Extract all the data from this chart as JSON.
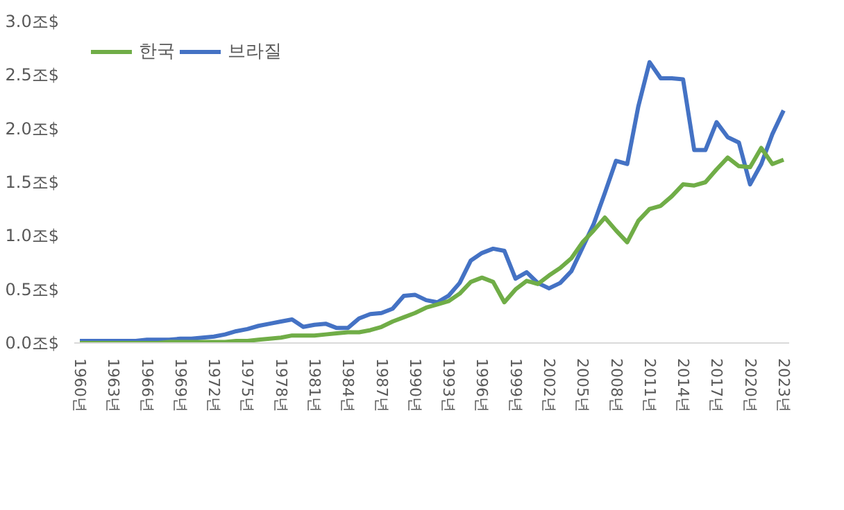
{
  "chart_data": {
    "type": "line",
    "x": [
      1960,
      1961,
      1962,
      1963,
      1964,
      1965,
      1966,
      1967,
      1968,
      1969,
      1970,
      1971,
      1972,
      1973,
      1974,
      1975,
      1976,
      1977,
      1978,
      1979,
      1980,
      1981,
      1982,
      1983,
      1984,
      1985,
      1986,
      1987,
      1988,
      1989,
      1990,
      1991,
      1992,
      1993,
      1994,
      1995,
      1996,
      1997,
      1998,
      1999,
      2000,
      2001,
      2002,
      2003,
      2004,
      2005,
      2006,
      2007,
      2008,
      2009,
      2010,
      2011,
      2012,
      2013,
      2014,
      2015,
      2016,
      2017,
      2018,
      2019,
      2020,
      2021,
      2022,
      2023
    ],
    "series": [
      {
        "name": "한국",
        "color": "#70ad47",
        "values": [
          0.0,
          0.0,
          0.0,
          0.0,
          0.0,
          0.0,
          0.0,
          0.0,
          0.01,
          0.01,
          0.01,
          0.01,
          0.01,
          0.01,
          0.02,
          0.02,
          0.03,
          0.04,
          0.05,
          0.07,
          0.07,
          0.07,
          0.08,
          0.09,
          0.1,
          0.1,
          0.12,
          0.15,
          0.2,
          0.24,
          0.28,
          0.33,
          0.36,
          0.39,
          0.46,
          0.57,
          0.61,
          0.57,
          0.38,
          0.5,
          0.58,
          0.55,
          0.63,
          0.7,
          0.79,
          0.94,
          1.05,
          1.17,
          1.05,
          0.94,
          1.14,
          1.25,
          1.28,
          1.37,
          1.48,
          1.47,
          1.5,
          1.62,
          1.73,
          1.65,
          1.64,
          1.82,
          1.67,
          1.71
        ]
      },
      {
        "name": "브라질",
        "color": "#4472c4",
        "values": [
          0.02,
          0.02,
          0.02,
          0.02,
          0.02,
          0.02,
          0.03,
          0.03,
          0.03,
          0.04,
          0.04,
          0.05,
          0.06,
          0.08,
          0.11,
          0.13,
          0.16,
          0.18,
          0.2,
          0.22,
          0.15,
          0.17,
          0.18,
          0.14,
          0.14,
          0.23,
          0.27,
          0.28,
          0.32,
          0.44,
          0.45,
          0.4,
          0.38,
          0.44,
          0.56,
          0.77,
          0.84,
          0.88,
          0.86,
          0.6,
          0.66,
          0.56,
          0.51,
          0.56,
          0.67,
          0.89,
          1.11,
          1.4,
          1.7,
          1.67,
          2.21,
          2.62,
          2.47,
          2.47,
          2.46,
          1.8,
          1.8,
          2.06,
          1.92,
          1.87,
          1.48,
          1.67,
          1.95,
          2.17
        ]
      }
    ],
    "xlim": [
      1959.5,
      2023.5
    ],
    "xticks": [
      {
        "value": 1960,
        "label": "1960년"
      },
      {
        "value": 1963,
        "label": "1963년"
      },
      {
        "value": 1966,
        "label": "1966년"
      },
      {
        "value": 1969,
        "label": "1969년"
      },
      {
        "value": 1972,
        "label": "1972년"
      },
      {
        "value": 1975,
        "label": "1975년"
      },
      {
        "value": 1978,
        "label": "1978년"
      },
      {
        "value": 1981,
        "label": "1981년"
      },
      {
        "value": 1984,
        "label": "1984년"
      },
      {
        "value": 1987,
        "label": "1987년"
      },
      {
        "value": 1990,
        "label": "1990년"
      },
      {
        "value": 1993,
        "label": "1993년"
      },
      {
        "value": 1996,
        "label": "1996년"
      },
      {
        "value": 1999,
        "label": "1999년"
      },
      {
        "value": 2002,
        "label": "2002년"
      },
      {
        "value": 2005,
        "label": "2005년"
      },
      {
        "value": 2008,
        "label": "2008년"
      },
      {
        "value": 2011,
        "label": "2011년"
      },
      {
        "value": 2014,
        "label": "2014년"
      },
      {
        "value": 2017,
        "label": "2017년"
      },
      {
        "value": 2020,
        "label": "2020년"
      },
      {
        "value": 2023,
        "label": "2023년"
      }
    ],
    "ylim": [
      0,
      3.0
    ],
    "yticks": [
      {
        "value": 0,
        "label": "0.0조$"
      },
      {
        "value": 0.5,
        "label": "0.5조$"
      },
      {
        "value": 1.0,
        "label": "1.0조$"
      },
      {
        "value": 1.5,
        "label": "1.5조$"
      },
      {
        "value": 2.0,
        "label": "2.0조$"
      },
      {
        "value": 2.5,
        "label": "2.5조$"
      },
      {
        "value": 3.0,
        "label": "3.0조$"
      }
    ],
    "legend": "top left",
    "line_style": "solid"
  }
}
